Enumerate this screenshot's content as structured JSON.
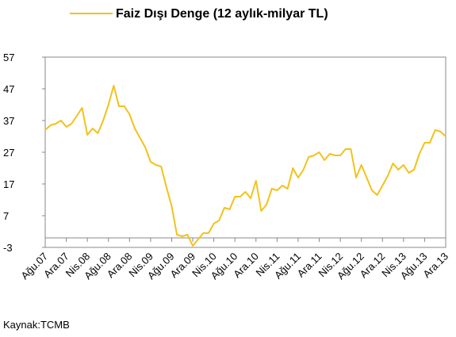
{
  "chart_data": {
    "type": "line",
    "categories": [
      "Ağu.07",
      null,
      null,
      null,
      "Ara.07",
      null,
      null,
      null,
      "Nis.08",
      null,
      null,
      null,
      "Ağu.08",
      null,
      null,
      null,
      "Ara.08",
      null,
      null,
      null,
      "Nis.09",
      null,
      null,
      null,
      "Ağu.09",
      null,
      null,
      null,
      "Ara.09",
      null,
      null,
      null,
      "Nis.10",
      null,
      null,
      null,
      "Ağu.10",
      null,
      null,
      null,
      "Ara.10",
      null,
      null,
      null,
      "Nis.11",
      null,
      null,
      null,
      "Ağu.11",
      null,
      null,
      null,
      "Ara.11",
      null,
      null,
      null,
      "Nis.12",
      null,
      null,
      null,
      "Ağu.12",
      null,
      null,
      null,
      "Ara.12",
      null,
      null,
      null,
      "Nis.13",
      null,
      null,
      null,
      "Ağu.13",
      null,
      null,
      null,
      "Ara.13"
    ],
    "series": [
      {
        "name": "Faiz Dışı Denge (12 aylık-milyar TL)",
        "color": "#f2c21b",
        "values": [
          34,
          35.5,
          36,
          37,
          35,
          36,
          38.5,
          41,
          32.5,
          34.5,
          33,
          37,
          42,
          48,
          41.5,
          41.5,
          39,
          34.5,
          31.5,
          28.5,
          24,
          23,
          22.5,
          16,
          10,
          1,
          0.5,
          1,
          -2.5,
          -0.5,
          1.5,
          1.5,
          4.5,
          5.5,
          9.5,
          9,
          13,
          13,
          14.5,
          12.5,
          18,
          8.5,
          10.5,
          15.5,
          15,
          16.5,
          15.5,
          22,
          19,
          21.5,
          25.5,
          26,
          27,
          24.5,
          26.5,
          26,
          26,
          28,
          28,
          19,
          23,
          19,
          15,
          13.5,
          16.5,
          19.5,
          23.5,
          21.5,
          23,
          20.5,
          21.5,
          26.5,
          30,
          30,
          34,
          33.5,
          32
        ]
      }
    ],
    "ylim": [
      -3,
      57
    ],
    "yticks": [
      -3,
      7,
      17,
      27,
      37,
      47,
      57
    ],
    "legend": "top",
    "source": "Kaynak:TCMB"
  }
}
